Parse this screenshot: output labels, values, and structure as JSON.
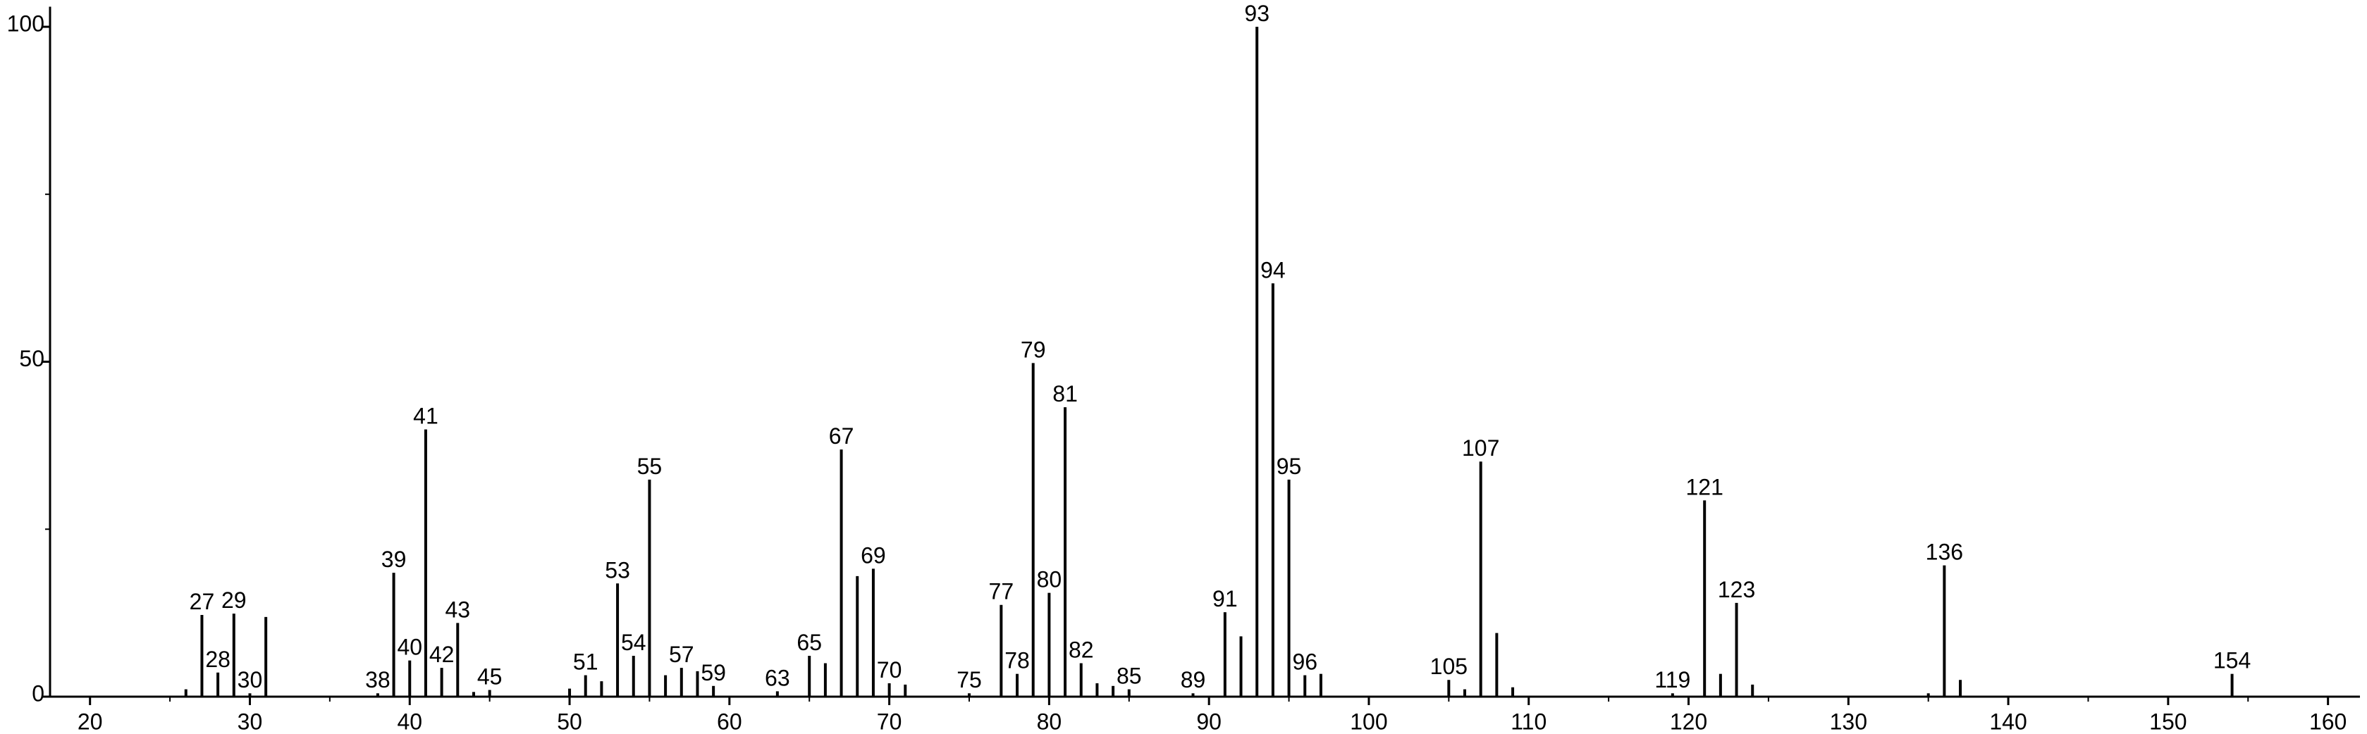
{
  "chart_data": {
    "type": "stem",
    "x": [
      26,
      27,
      28,
      29,
      30,
      31,
      38,
      39,
      40,
      41,
      42,
      43,
      44,
      45,
      50,
      51,
      52,
      53,
      54,
      55,
      56,
      57,
      58,
      59,
      63,
      65,
      66,
      67,
      68,
      69,
      70,
      71,
      75,
      77,
      78,
      79,
      80,
      81,
      82,
      83,
      84,
      85,
      89,
      91,
      92,
      93,
      94,
      95,
      96,
      97,
      105,
      106,
      107,
      108,
      109,
      119,
      121,
      122,
      123,
      124,
      135,
      136,
      137,
      154
    ],
    "values": [
      1.1,
      12.2,
      3.6,
      12.4,
      0.5,
      11.9,
      0.5,
      18.5,
      5.4,
      39.9,
      4.3,
      11,
      0.7,
      1,
      1.2,
      3.2,
      2.3,
      16.9,
      6.1,
      32.4,
      3.2,
      4.3,
      3.8,
      1.6,
      0.8,
      6.1,
      5,
      36.9,
      18,
      19.1,
      2,
      1.8,
      0.5,
      13.7,
      3.4,
      49.8,
      15.5,
      43.2,
      5,
      2,
      1.6,
      1.1,
      0.5,
      12.6,
      9,
      100,
      61.7,
      32.4,
      3.2,
      3.4,
      2.5,
      1.1,
      35.1,
      9.5,
      1.4,
      0.5,
      29.3,
      3.4,
      14,
      1.8,
      0.5,
      19.6,
      2.5,
      3.4
    ],
    "value_labels": [
      null,
      "27",
      "28",
      "29",
      "30",
      null,
      "38",
      "39",
      "40",
      "41",
      "42",
      "43",
      null,
      "45",
      null,
      "51",
      null,
      "53",
      "54",
      "55",
      null,
      "57",
      null,
      "59",
      "63",
      "65",
      null,
      "67",
      null,
      "69",
      "70",
      null,
      "75",
      "77",
      "78",
      "79",
      "80",
      "81",
      "82",
      null,
      null,
      "85",
      "89",
      "91",
      null,
      "93",
      "94",
      "95",
      "96",
      null,
      "105",
      null,
      "107",
      null,
      null,
      "119",
      "121",
      null,
      "123",
      null,
      null,
      "136",
      null,
      "154"
    ],
    "color": "#000000",
    "xlim": [
      17.5,
      162
    ],
    "xticks": [
      20,
      30,
      40,
      50,
      60,
      70,
      80,
      90,
      100,
      110,
      120,
      130,
      140,
      150,
      160
    ],
    "x_minor_ticks": [
      25,
      35,
      45,
      55,
      65,
      75,
      85,
      95,
      105,
      115,
      125,
      135,
      145,
      155
    ],
    "ylim": [
      0,
      103
    ],
    "yticks": [
      0,
      50,
      100
    ],
    "y_minor_ticks": [
      25,
      75
    ]
  }
}
